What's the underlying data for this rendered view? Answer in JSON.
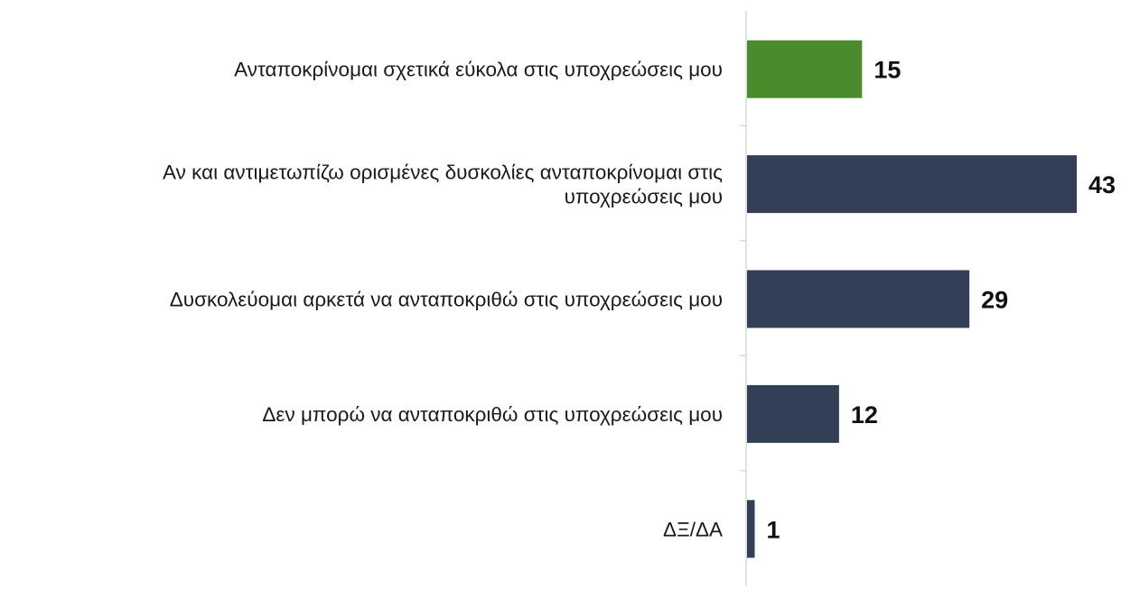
{
  "chart_data": {
    "type": "bar",
    "orientation": "horizontal",
    "categories": [
      [
        "Ανταποκρίνομαι σχετικά εύκολα στις υποχρεώσεις μου"
      ],
      [
        "Αν και αντιμετωπίζω ορισμένες δυσκολίες ανταποκρίνομαι στις",
        "υποχρεώσεις μου"
      ],
      [
        "Δυσκολεύομαι αρκετά να ανταποκριθώ στις υποχρεώσεις μου"
      ],
      [
        "Δεν μπορώ να ανταποκριθώ στις υποχρεώσεις μου"
      ],
      [
        "ΔΞ/ΔΑ"
      ]
    ],
    "values": [
      15,
      43,
      29,
      12,
      1
    ],
    "value_labels": [
      "15",
      "43",
      "29",
      "12",
      "1"
    ],
    "bar_colors": [
      "#4a8b2c",
      "#323f54",
      "#323f54",
      "#323f54",
      "#323f54"
    ],
    "axis_color": "#d9d9d9",
    "xlim": [
      0,
      43
    ],
    "grid": false,
    "legend": "none",
    "title": "",
    "xlabel": "",
    "ylabel": ""
  }
}
